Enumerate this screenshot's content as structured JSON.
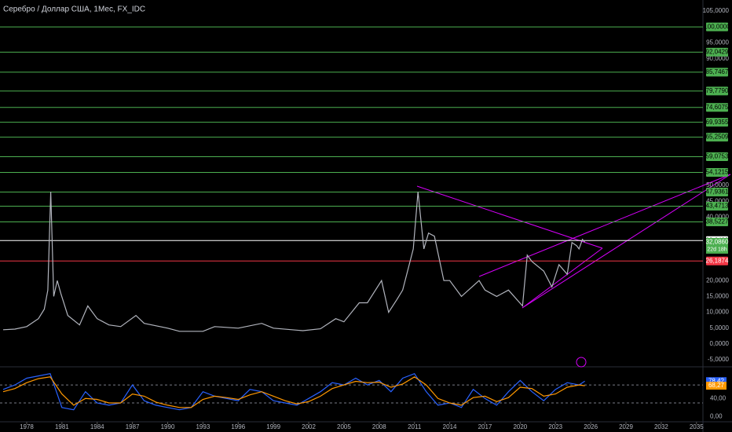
{
  "chart_data": [
    {
      "type": "line",
      "title": "Серебро / Доллар США, 1Мес, FX_IDC",
      "x": [
        1976,
        1977,
        1978,
        1979,
        1979.5,
        1979.8,
        1980.05,
        1980.3,
        1980.6,
        1980.9,
        1981.5,
        1982.5,
        1983.2,
        1984,
        1985,
        1986,
        1987.3,
        1988,
        1990,
        1991,
        1993,
        1994,
        1996,
        1998,
        1999,
        2001.5,
        2003,
        2004.3,
        2005,
        2006.3,
        2007,
        2008.2,
        2008.8,
        2009.5,
        2010,
        2010.9,
        2011.3,
        2011.8,
        2012.2,
        2012.7,
        2013.5,
        2014,
        2015,
        2016.5,
        2017,
        2018,
        2019,
        2020.2,
        2020.6,
        2021,
        2022,
        2022.7,
        2023.3,
        2024,
        2024.4,
        2024.8,
        2025,
        2025.3,
        2025.5
      ],
      "values": [
        4.5,
        4.7,
        5.5,
        8,
        11,
        17,
        48,
        15,
        20,
        16,
        9,
        6,
        12,
        8,
        6,
        5.5,
        9,
        6.5,
        5,
        4,
        4,
        5.5,
        5,
        6.5,
        5,
        4.2,
        4.8,
        8,
        7,
        13,
        13,
        20,
        10,
        14,
        17,
        30,
        48,
        30,
        35,
        34,
        20,
        20,
        15,
        20,
        17,
        15,
        17,
        12,
        28,
        26,
        23,
        18,
        25,
        22,
        32,
        31,
        30,
        33,
        32.086
      ],
      "color": "#b2b5be",
      "xlim": [
        1975.73,
        2035.55
      ],
      "xticks": [
        1978,
        1981,
        1984,
        1987,
        1990,
        1993,
        1996,
        1999,
        2002,
        2005,
        2008,
        2011,
        2014,
        2017,
        2020,
        2023,
        2026,
        2029,
        2032,
        2035
      ],
      "ylim": [
        -6.7,
        108.5
      ],
      "yticks": [
        {
          "value": 105,
          "label": "105,0000"
        },
        {
          "value": 95,
          "label": "95,0000"
        },
        {
          "value": 90,
          "label": "90,0000"
        },
        {
          "value": 50,
          "label": "50,0000"
        },
        {
          "value": 45,
          "label": "45,0000"
        },
        {
          "value": 40,
          "label": "40,0000"
        },
        {
          "value": 20,
          "label": "20,0000"
        },
        {
          "value": 15,
          "label": "15,0000"
        },
        {
          "value": 10,
          "label": "10,0000"
        },
        {
          "value": 5,
          "label": "5,0000"
        },
        {
          "value": 0,
          "label": "0,0000"
        },
        {
          "value": -5,
          "label": "-5,0000"
        }
      ],
      "levels": [
        {
          "value": 100,
          "label": "100,0000",
          "color": "#4caf50"
        },
        {
          "value": 92.0429,
          "label": "92,0429",
          "color": "#4caf50"
        },
        {
          "value": 85.7467,
          "label": "85,7467",
          "color": "#4caf50"
        },
        {
          "value": 79.779,
          "label": "79,7790",
          "color": "#4caf50"
        },
        {
          "value": 74.6075,
          "label": "74,6075",
          "color": "#4caf50"
        },
        {
          "value": 69.9355,
          "label": "69,9355",
          "color": "#4caf50"
        },
        {
          "value": 65.2509,
          "label": "65,2509",
          "color": "#4caf50"
        },
        {
          "value": 59.0753,
          "label": "59,0753",
          "color": "#4caf50"
        },
        {
          "value": 54.1215,
          "label": "54,1215",
          "color": "#4caf50"
        },
        {
          "value": 47.9361,
          "label": "47,9361",
          "color": "#4caf50"
        },
        {
          "value": 43.4713,
          "label": "43,4713",
          "color": "#4caf50"
        },
        {
          "value": 38.5227,
          "label": "38,5227",
          "color": "#4caf50"
        },
        {
          "value": 32.6429,
          "label": "32,6429",
          "color": "#ffffff"
        },
        {
          "value": 26.1874,
          "label": "26,1874",
          "color": "#f23645"
        }
      ],
      "last_price": {
        "value": 32.086,
        "label": "32,0860",
        "countdown": "22d 18h",
        "color": "#4caf50"
      }
    },
    {
      "type": "line",
      "x": [
        1976,
        1977,
        1978,
        1979,
        1980,
        1981,
        1982,
        1983,
        1984,
        1985,
        1986,
        1987,
        1988,
        1989,
        1990,
        1991,
        1992,
        1993,
        1994,
        1995,
        1996,
        1997,
        1998,
        1999,
        2000,
        2001,
        2002,
        2003,
        2004,
        2005,
        2006,
        2007,
        2008,
        2009,
        2010,
        2011,
        2012,
        2013,
        2014,
        2015,
        2016,
        2017,
        2018,
        2019,
        2020,
        2021,
        2022,
        2023,
        2024,
        2025,
        2025.5
      ],
      "series": [
        {
          "color": "#2962ff",
          "values": [
            60,
            70,
            85,
            90,
            95,
            20,
            15,
            55,
            30,
            25,
            30,
            70,
            35,
            25,
            20,
            15,
            20,
            55,
            45,
            40,
            35,
            60,
            55,
            35,
            30,
            25,
            40,
            55,
            75,
            70,
            85,
            70,
            80,
            55,
            85,
            95,
            55,
            25,
            30,
            20,
            60,
            40,
            25,
            55,
            80,
            55,
            35,
            60,
            75,
            70,
            78.42
          ],
          "last_label": "78,42"
        },
        {
          "color": "#ff9800",
          "values": [
            55,
            62,
            75,
            84,
            88,
            50,
            25,
            40,
            38,
            30,
            30,
            50,
            45,
            32,
            25,
            20,
            20,
            38,
            45,
            42,
            38,
            48,
            55,
            45,
            35,
            28,
            33,
            45,
            62,
            70,
            78,
            75,
            76,
            65,
            72,
            88,
            70,
            40,
            30,
            25,
            42,
            45,
            33,
            42,
            65,
            62,
            45,
            50,
            65,
            70,
            68.27
          ],
          "last_label": "68,27"
        }
      ],
      "xlim": [
        1975.73,
        2035.55
      ],
      "ylim": [
        -10,
        105
      ],
      "yticks": [
        {
          "value": 40,
          "label": "40,00"
        },
        {
          "value": 0,
          "label": "0,00"
        }
      ],
      "bands": [
        70,
        30
      ]
    }
  ]
}
